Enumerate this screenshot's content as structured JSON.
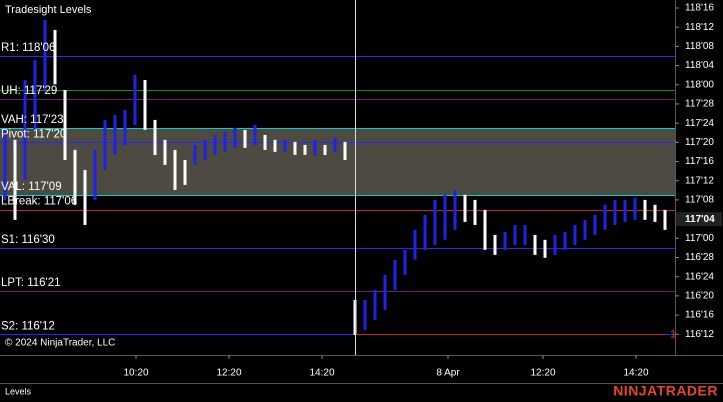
{
  "chart_data": {
    "type": "ohlc",
    "title": "Tradesight Levels",
    "x": [
      0,
      1,
      2,
      3,
      4,
      5,
      6,
      7,
      8,
      9,
      10,
      11,
      12,
      13,
      14,
      15,
      16,
      17,
      18,
      19,
      20,
      21,
      22,
      23,
      24,
      25,
      26,
      27,
      28,
      29,
      30,
      31,
      32,
      33,
      34,
      35,
      36,
      37,
      38,
      39,
      40,
      41,
      42,
      43,
      44,
      45,
      46,
      47,
      48,
      49,
      50,
      51,
      52,
      53,
      54,
      55,
      56,
      57,
      58,
      59,
      60,
      61,
      62,
      63,
      64,
      65,
      66
    ],
    "high": [
      117.706,
      117.641,
      118.031,
      118.161,
      118.422,
      118.357,
      117.966,
      117.576,
      117.445,
      117.576,
      117.771,
      117.803,
      117.836,
      118.064,
      118.031,
      117.771,
      117.641,
      117.576,
      117.51,
      117.608,
      117.641,
      117.673,
      117.693,
      117.719,
      117.706,
      117.738,
      117.673,
      117.641,
      117.641,
      117.628,
      117.608,
      117.641,
      117.608,
      117.654,
      117.628,
      116.599,
      116.599,
      116.664,
      116.762,
      116.86,
      116.925,
      117.055,
      117.152,
      117.25,
      117.283,
      117.315,
      117.283,
      117.25,
      117.185,
      117.022,
      117.042,
      117.087,
      117.087,
      117.022,
      116.99,
      117.022,
      117.042,
      117.087,
      117.12,
      117.152,
      117.218,
      117.25,
      117.25,
      117.263,
      117.25,
      117.218,
      117.185
    ],
    "low": [
      117.25,
      117.12,
      117.38,
      117.706,
      117.966,
      118.003,
      117.51,
      117.218,
      117.087,
      117.25,
      117.445,
      117.543,
      117.608,
      117.738,
      117.706,
      117.543,
      117.478,
      117.315,
      117.348,
      117.478,
      117.51,
      117.543,
      117.563,
      117.589,
      117.589,
      117.608,
      117.576,
      117.563,
      117.563,
      117.543,
      117.543,
      117.537,
      117.543,
      117.563,
      117.51,
      116.371,
      116.404,
      116.469,
      116.534,
      116.664,
      116.762,
      116.86,
      116.925,
      116.957,
      116.99,
      117.055,
      117.107,
      117.087,
      116.925,
      116.892,
      116.925,
      116.957,
      116.957,
      116.892,
      116.873,
      116.892,
      116.925,
      116.957,
      116.99,
      117.022,
      117.055,
      117.087,
      117.107,
      117.12,
      117.12,
      117.107,
      117.055
    ],
    "colors": {
      "up": "#1f22e8",
      "down": "#ffffff"
    },
    "xlim": [
      -0.5,
      67
    ],
    "xticks": [
      {
        "value": 13.1,
        "label": "10:20"
      },
      {
        "value": 22.4,
        "label": "12:20"
      },
      {
        "value": 31.7,
        "label": "14:20"
      },
      {
        "value": 44.3,
        "label": "8 Apr"
      },
      {
        "value": 53.8,
        "label": "12:20"
      },
      {
        "value": 63.1,
        "label": "14:20"
      }
    ],
    "ylim": [
      116.24,
      118.552
    ],
    "yticks": [
      {
        "value": 118.5,
        "label": "118'16"
      },
      {
        "value": 118.375,
        "label": "118'12"
      },
      {
        "value": 118.25,
        "label": "118'08"
      },
      {
        "value": 118.125,
        "label": "118'04"
      },
      {
        "value": 118,
        "label": "118'00"
      },
      {
        "value": 117.875,
        "label": "117'28"
      },
      {
        "value": 117.75,
        "label": "117'24"
      },
      {
        "value": 117.625,
        "label": "117'20"
      },
      {
        "value": 117.5,
        "label": "117'16"
      },
      {
        "value": 117.375,
        "label": "117'12"
      },
      {
        "value": 117.25,
        "label": "117'08"
      },
      {
        "value": 117,
        "label": "117'00"
      },
      {
        "value": 116.875,
        "label": "116'28"
      },
      {
        "value": 116.75,
        "label": "116'24"
      },
      {
        "value": 116.625,
        "label": "116'20"
      },
      {
        "value": 116.5,
        "label": "116'16"
      },
      {
        "value": 116.375,
        "label": "116'12"
      }
    ],
    "last": {
      "value": 117.125,
      "label": "117'04"
    },
    "levels": [
      {
        "label": "R1: 118'06",
        "value": 118.1875,
        "color": "#2626ff"
      },
      {
        "label": null,
        "value": 117.96875,
        "color": "#0f8f0f"
      },
      {
        "label": "UH: 117'29",
        "value": 117.90625,
        "color": "#702070"
      },
      {
        "label": "VAH: 117'23",
        "value": 117.71875,
        "color": "#00d0d0"
      },
      {
        "label": "Pivot: 117'20",
        "value": 117.625,
        "color": "#2626ff"
      },
      {
        "label": "VAL: 117'09",
        "value": 117.28125,
        "color": "#00d0d0"
      },
      {
        "label": "LBreak: 117'06",
        "value": 117.1875,
        "color": "#c82020"
      },
      {
        "label": "S1: 116'30",
        "value": 116.9375,
        "color": "#2626ff"
      },
      {
        "label": "LPT: 116'21",
        "value": 116.65625,
        "color": "#702070"
      },
      {
        "label": "S2: 116'12",
        "value": 116.375,
        "color": "#2626ff"
      }
    ],
    "value_area": {
      "color": "#4d4a42"
    },
    "marker": "1",
    "copyright": "© 2024 NinjaTrader, LLC",
    "panel_label": "Levels",
    "logo": "NINJATRADER"
  }
}
